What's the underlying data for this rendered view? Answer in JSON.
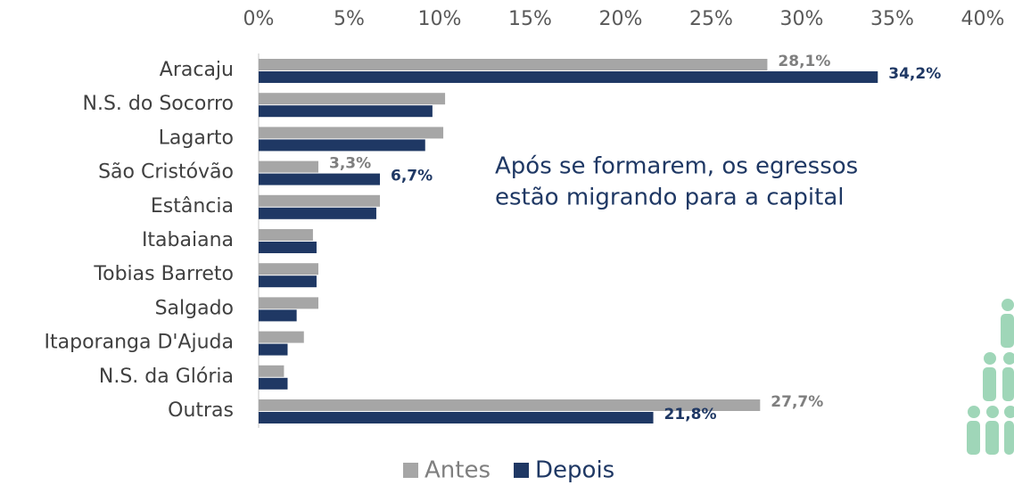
{
  "chart_data": {
    "type": "hbar",
    "categories": [
      "Aracaju",
      "N.S. do Socorro",
      "Lagarto",
      "São Cristóvão",
      "Estância",
      "Itabaiana",
      "Tobias Barreto",
      "Salgado",
      "Itaporanga D'Ajuda",
      "N.S. da Glória",
      "Outras"
    ],
    "series": [
      {
        "name": "Antes",
        "color": "#a6a6a6",
        "values": [
          28.1,
          10.3,
          10.2,
          3.3,
          6.7,
          3.0,
          3.3,
          3.3,
          2.5,
          1.4,
          27.7
        ],
        "value_labels": [
          "28,1%",
          null,
          null,
          "3,3%",
          null,
          null,
          null,
          null,
          null,
          null,
          "27,7%"
        ]
      },
      {
        "name": "Depois",
        "color": "#1f3864",
        "values": [
          34.2,
          9.6,
          9.2,
          6.7,
          6.5,
          3.2,
          3.2,
          2.1,
          1.6,
          1.6,
          21.8
        ],
        "value_labels": [
          "34,2%",
          null,
          null,
          "6,7%",
          null,
          null,
          null,
          null,
          null,
          null,
          "21,8%"
        ]
      }
    ],
    "xlim": [
      0,
      40
    ],
    "xticks": [
      {
        "value": 0,
        "label": "0%"
      },
      {
        "value": 5,
        "label": "5%"
      },
      {
        "value": 10,
        "label": "10%"
      },
      {
        "value": 15,
        "label": "15%"
      },
      {
        "value": 20,
        "label": "20%"
      },
      {
        "value": 25,
        "label": "25%"
      },
      {
        "value": 30,
        "label": "30%"
      },
      {
        "value": 35,
        "label": "35%"
      },
      {
        "value": 40,
        "label": "40%"
      }
    ],
    "annotation": [
      "Após se formarem, os egressos",
      "estão migrando para a capital"
    ],
    "legend": "bottom"
  }
}
